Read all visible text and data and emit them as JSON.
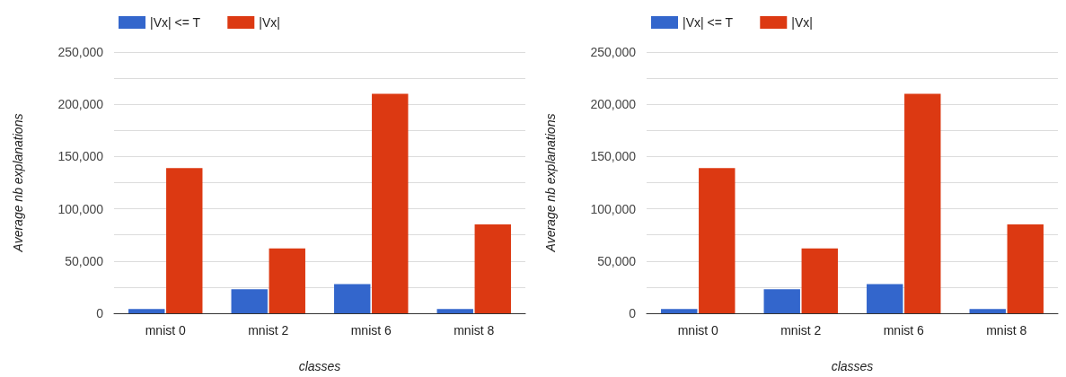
{
  "chart_data": [
    {
      "type": "bar",
      "xlabel": "classes",
      "ylabel": "Average nb explanations",
      "categories": [
        "mnist 0",
        "mnist 2",
        "mnist 6",
        "mnist 8"
      ],
      "series": [
        {
          "name": "|Vx| <= T",
          "color": "#3366cc",
          "values": [
            4000,
            23000,
            28000,
            4000
          ]
        },
        {
          "name": "|Vx|",
          "color": "#dc3912",
          "values": [
            139000,
            62000,
            210000,
            85000
          ]
        }
      ],
      "ylim": [
        0,
        250000
      ],
      "yticks": [
        0,
        {
          "value": 25000,
          "label": null
        },
        {
          "value": 50000,
          "label": "50,000"
        },
        {
          "value": 75000,
          "label": null
        },
        {
          "value": 100000,
          "label": "100,000"
        },
        {
          "value": 125000,
          "label": null
        },
        {
          "value": 150000,
          "label": "150,000"
        },
        {
          "value": 175000,
          "label": null
        },
        {
          "value": 200000,
          "label": "200,000"
        },
        {
          "value": 225000,
          "label": null
        },
        {
          "value": 250000,
          "label": "250,000"
        }
      ],
      "grid": "y",
      "legend": "top left"
    },
    {
      "type": "bar",
      "xlabel": "classes",
      "ylabel": "Average nb explanations",
      "categories": [
        "mnist 0",
        "mnist 2",
        "mnist 6",
        "mnist 8"
      ],
      "series": [
        {
          "name": "|Vx| <= T",
          "color": "#3366cc",
          "values": [
            4000,
            23000,
            28000,
            4000
          ]
        },
        {
          "name": "|Vx|",
          "color": "#dc3912",
          "values": [
            139000,
            62000,
            210000,
            85000
          ]
        }
      ],
      "ylim": [
        0,
        250000
      ],
      "yticks": [
        0,
        {
          "value": 25000,
          "label": null
        },
        {
          "value": 50000,
          "label": "50,000"
        },
        {
          "value": 75000,
          "label": null
        },
        {
          "value": 100000,
          "label": "100,000"
        },
        {
          "value": 125000,
          "label": null
        },
        {
          "value": 150000,
          "label": "150,000"
        },
        {
          "value": 175000,
          "label": null
        },
        {
          "value": 200000,
          "label": "200,000"
        },
        {
          "value": 225000,
          "label": null
        },
        {
          "value": 250000,
          "label": "250,000"
        }
      ],
      "grid": "y",
      "legend": "top left"
    }
  ]
}
